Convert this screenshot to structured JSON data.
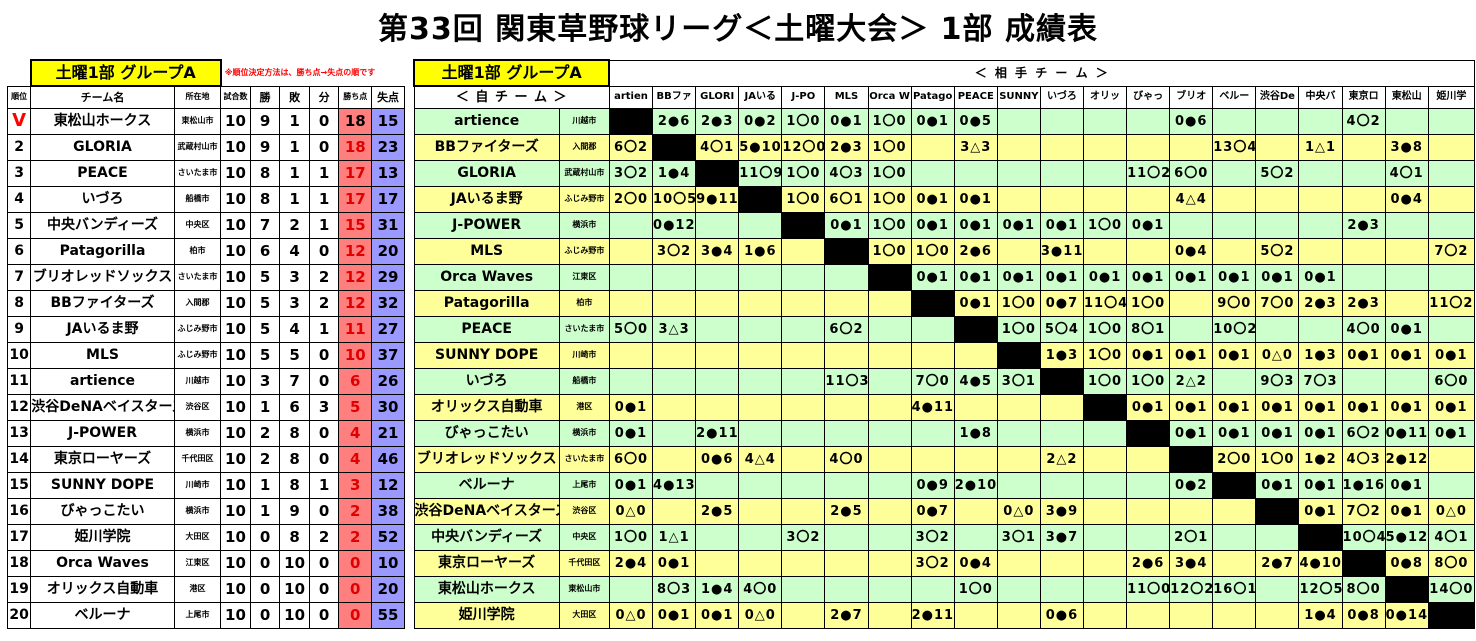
{
  "title": "第33回 関東草野球リーグ＜土曜大会＞ 1部 成績表",
  "group_label": "土曜1部 グループA",
  "note": "※順位決定方法は、勝ち点→失点の順です",
  "left_headers": [
    "順位",
    "チーム名",
    "所在地",
    "試合数",
    "勝",
    "敗",
    "分",
    "勝ち点",
    "失点"
  ],
  "right_header_self": "＜ 自 チ ー ム ＞",
  "right_header_opp": "＜ 相 手 チ ー ム ＞",
  "opp_headers": [
    "artien",
    "BBファ",
    "GLORI",
    "JAいる",
    "J-PO",
    "MLS",
    "Orca W",
    "Patago",
    "PEACE",
    "SUNNY",
    "いづろ",
    "オリッ",
    "びゃっ",
    "ブリオ",
    "ベルー",
    "渋谷De",
    "中央バ",
    "東京ロ",
    "東松山",
    "姫川学"
  ],
  "standings": [
    {
      "rank": "V",
      "name": "東松山ホークス",
      "loc": "東松山市",
      "g": "10",
      "w": "9",
      "l": "1",
      "d": "0",
      "pts": "18",
      "ga": "15"
    },
    {
      "rank": "2",
      "name": "GLORIA",
      "loc": "武蔵村山市",
      "g": "10",
      "w": "9",
      "l": "1",
      "d": "0",
      "pts": "18",
      "ga": "23"
    },
    {
      "rank": "3",
      "name": "PEACE",
      "loc": "さいたま市",
      "g": "10",
      "w": "8",
      "l": "1",
      "d": "1",
      "pts": "17",
      "ga": "13"
    },
    {
      "rank": "4",
      "name": "いづろ",
      "loc": "船橋市",
      "g": "10",
      "w": "8",
      "l": "1",
      "d": "1",
      "pts": "17",
      "ga": "17"
    },
    {
      "rank": "5",
      "name": "中央バンディーズ",
      "loc": "中央区",
      "g": "10",
      "w": "7",
      "l": "2",
      "d": "1",
      "pts": "15",
      "ga": "31"
    },
    {
      "rank": "6",
      "name": "Patagorilla",
      "loc": "柏市",
      "g": "10",
      "w": "6",
      "l": "4",
      "d": "0",
      "pts": "12",
      "ga": "20"
    },
    {
      "rank": "7",
      "name": "ブリオレッドソックス",
      "loc": "さいたま市",
      "g": "10",
      "w": "5",
      "l": "3",
      "d": "2",
      "pts": "12",
      "ga": "29"
    },
    {
      "rank": "8",
      "name": "BBファイターズ",
      "loc": "入間郡",
      "g": "10",
      "w": "5",
      "l": "3",
      "d": "2",
      "pts": "12",
      "ga": "32"
    },
    {
      "rank": "9",
      "name": "JAいるま野",
      "loc": "ふじみ野市",
      "g": "10",
      "w": "5",
      "l": "4",
      "d": "1",
      "pts": "11",
      "ga": "27"
    },
    {
      "rank": "10",
      "name": "MLS",
      "loc": "ふじみ野市",
      "g": "10",
      "w": "5",
      "l": "5",
      "d": "0",
      "pts": "10",
      "ga": "37"
    },
    {
      "rank": "11",
      "name": "artience",
      "loc": "川越市",
      "g": "10",
      "w": "3",
      "l": "7",
      "d": "0",
      "pts": "6",
      "ga": "26"
    },
    {
      "rank": "12",
      "name": "渋谷DeNAベイスターズ",
      "loc": "渋谷区",
      "g": "10",
      "w": "1",
      "l": "6",
      "d": "3",
      "pts": "5",
      "ga": "30"
    },
    {
      "rank": "13",
      "name": "J-POWER",
      "loc": "横浜市",
      "g": "10",
      "w": "2",
      "l": "8",
      "d": "0",
      "pts": "4",
      "ga": "21"
    },
    {
      "rank": "14",
      "name": "東京ローヤーズ",
      "loc": "千代田区",
      "g": "10",
      "w": "2",
      "l": "8",
      "d": "0",
      "pts": "4",
      "ga": "46"
    },
    {
      "rank": "15",
      "name": "SUNNY DOPE",
      "loc": "川崎市",
      "g": "10",
      "w": "1",
      "l": "8",
      "d": "1",
      "pts": "3",
      "ga": "12"
    },
    {
      "rank": "16",
      "name": "びゃっこたい",
      "loc": "横浜市",
      "g": "10",
      "w": "1",
      "l": "9",
      "d": "0",
      "pts": "2",
      "ga": "38"
    },
    {
      "rank": "17",
      "name": "姫川学院",
      "loc": "大田区",
      "g": "10",
      "w": "0",
      "l": "8",
      "d": "2",
      "pts": "2",
      "ga": "52"
    },
    {
      "rank": "18",
      "name": "Orca Waves",
      "loc": "江東区",
      "g": "10",
      "w": "0",
      "l": "10",
      "d": "0",
      "pts": "0",
      "ga": "10"
    },
    {
      "rank": "19",
      "name": "オリックス自動車",
      "loc": "港区",
      "g": "10",
      "w": "0",
      "l": "10",
      "d": "0",
      "pts": "0",
      "ga": "20"
    },
    {
      "rank": "20",
      "name": "ベルーナ",
      "loc": "上尾市",
      "g": "10",
      "w": "0",
      "l": "10",
      "d": "0",
      "pts": "0",
      "ga": "55"
    }
  ],
  "matrix_teams": [
    {
      "name": "artience",
      "loc": "川越市",
      "cells": [
        "■",
        "2●6",
        "2●3",
        "0●2",
        "1〇0",
        "0●1",
        "1〇0",
        "0●1",
        "0●5",
        "",
        "",
        "",
        "",
        "0●6",
        "",
        "",
        "",
        "4〇2",
        "",
        ""
      ]
    },
    {
      "name": "BBファイターズ",
      "loc": "入間郡",
      "cells": [
        "6〇2",
        "■",
        "4〇1",
        "5●10",
        "12〇0",
        "2●3",
        "1〇0",
        "",
        "3△3",
        "",
        "",
        "",
        "",
        "",
        "13〇4",
        "",
        "1△1",
        "",
        "3●8",
        ""
      ]
    },
    {
      "name": "GLORIA",
      "loc": "武蔵村山市",
      "cells": [
        "3〇2",
        "1●4",
        "■",
        "11〇9",
        "1〇0",
        "4〇3",
        "1〇0",
        "",
        "",
        "",
        "",
        "",
        "11〇2",
        "6〇0",
        "",
        "5〇2",
        "",
        "",
        "4〇1",
        ""
      ]
    },
    {
      "name": "JAいるま野",
      "loc": "ふじみ野市",
      "cells": [
        "2〇0",
        "10〇5",
        "9●11",
        "■",
        "1〇0",
        "6〇1",
        "1〇0",
        "0●1",
        "0●1",
        "",
        "",
        "",
        "",
        "4△4",
        "",
        "",
        "",
        "",
        "0●4",
        ""
      ]
    },
    {
      "name": "J-POWER",
      "loc": "横浜市",
      "cells": [
        "",
        "0●12",
        "",
        "",
        "■",
        "0●1",
        "1〇0",
        "0●1",
        "0●1",
        "0●1",
        "0●1",
        "1〇0",
        "0●1",
        "",
        "",
        "",
        "",
        "2●3",
        "",
        ""
      ]
    },
    {
      "name": "MLS",
      "loc": "ふじみ野市",
      "cells": [
        "",
        "3〇2",
        "3●4",
        "1●6",
        "",
        "■",
        "1〇0",
        "1〇0",
        "2●6",
        "",
        "3●11",
        "",
        "",
        "0●4",
        "",
        "5〇2",
        "",
        "",
        "",
        "7〇2"
      ]
    },
    {
      "name": "Orca Waves",
      "loc": "江東区",
      "cells": [
        "",
        "",
        "",
        "",
        "",
        "",
        "■",
        "0●1",
        "0●1",
        "0●1",
        "0●1",
        "0●1",
        "0●1",
        "0●1",
        "0●1",
        "0●1",
        "0●1",
        "",
        "",
        ""
      ]
    },
    {
      "name": "Patagorilla",
      "loc": "柏市",
      "cells": [
        "",
        "",
        "",
        "",
        "",
        "",
        "",
        "■",
        "0●1",
        "1〇0",
        "0●7",
        "11〇4",
        "1〇0",
        "",
        "9〇0",
        "7〇0",
        "2●3",
        "2●3",
        "",
        "11〇2"
      ]
    },
    {
      "name": "PEACE",
      "loc": "さいたま市",
      "cells": [
        "5〇0",
        "3△3",
        "",
        "",
        "",
        "6〇2",
        "",
        "",
        "■",
        "1〇0",
        "5〇4",
        "1〇0",
        "8〇1",
        "",
        "10〇2",
        "",
        "",
        "4〇0",
        "0●1",
        ""
      ]
    },
    {
      "name": "SUNNY DOPE",
      "loc": "川崎市",
      "cells": [
        "",
        "",
        "",
        "",
        "",
        "",
        "",
        "",
        "",
        "■",
        "1●3",
        "1〇0",
        "0●1",
        "0●1",
        "0●1",
        "0△0",
        "1●3",
        "0●1",
        "0●1",
        "0●1"
      ]
    },
    {
      "name": "いづろ",
      "loc": "船橋市",
      "cells": [
        "",
        "",
        "",
        "",
        "",
        "11〇3",
        "",
        "7〇0",
        "4●5",
        "3〇1",
        "■",
        "1〇0",
        "1〇0",
        "2△2",
        "",
        "9〇3",
        "7〇3",
        "",
        "",
        "6〇0"
      ]
    },
    {
      "name": "オリックス自動車",
      "loc": "港区",
      "cells": [
        "0●1",
        "",
        "",
        "",
        "",
        "",
        "",
        "4●11",
        "",
        "",
        "",
        "■",
        "0●1",
        "0●1",
        "0●1",
        "0●1",
        "0●1",
        "0●1",
        "0●1",
        "0●1"
      ]
    },
    {
      "name": "びゃっこたい",
      "loc": "横浜市",
      "cells": [
        "0●1",
        "",
        "2●11",
        "",
        "",
        "",
        "",
        "",
        "1●8",
        "",
        "",
        "",
        "■",
        "0●1",
        "0●1",
        "0●1",
        "0●1",
        "6〇2",
        "0●11",
        "0●1"
      ]
    },
    {
      "name": "ブリオレッドソックス",
      "loc": "さいたま市",
      "cells": [
        "6〇0",
        "",
        "0●6",
        "4△4",
        "",
        "4〇0",
        "",
        "",
        "",
        "",
        "2△2",
        "",
        "",
        "■",
        "2〇0",
        "1〇0",
        "1●2",
        "4〇3",
        "2●12",
        ""
      ]
    },
    {
      "name": "ベルーナ",
      "loc": "上尾市",
      "cells": [
        "0●1",
        "4●13",
        "",
        "",
        "",
        "",
        "",
        "0●9",
        "2●10",
        "",
        "",
        "",
        "",
        "0●2",
        "■",
        "0●1",
        "0●1",
        "1●16",
        "0●1",
        ""
      ]
    },
    {
      "name": "渋谷DeNAベイスターズ",
      "loc": "渋谷区",
      "cells": [
        "0△0",
        "",
        "2●5",
        "",
        "",
        "2●5",
        "",
        "0●7",
        "",
        "0△0",
        "3●9",
        "",
        "",
        "",
        "",
        "■",
        "0●1",
        "7〇2",
        "0●1",
        "0△0"
      ]
    },
    {
      "name": "中央バンディーズ",
      "loc": "中央区",
      "cells": [
        "1〇0",
        "1△1",
        "",
        "",
        "3〇2",
        "",
        "",
        "3〇2",
        "",
        "3〇1",
        "3●7",
        "",
        "",
        "2〇1",
        "",
        "",
        "■",
        "10〇4",
        "5●12",
        "4〇1"
      ]
    },
    {
      "name": "東京ローヤーズ",
      "loc": "千代田区",
      "cells": [
        "2●4",
        "0●1",
        "",
        "",
        "",
        "",
        "",
        "3〇2",
        "0●4",
        "",
        "",
        "",
        "2●6",
        "3●4",
        "",
        "2●7",
        "4●10",
        "■",
        "0●8",
        "8〇0"
      ]
    },
    {
      "name": "東松山ホークス",
      "loc": "東松山市",
      "cells": [
        "",
        "8〇3",
        "1●4",
        "4〇0",
        "",
        "",
        "",
        "",
        "1〇0",
        "",
        "",
        "",
        "11〇0",
        "12〇2",
        "16〇1",
        "",
        "12〇5",
        "8〇0",
        "■",
        "14〇0"
      ]
    },
    {
      "name": "姫川学院",
      "loc": "大田区",
      "cells": [
        "0△0",
        "0●1",
        "0●1",
        "0△0",
        "",
        "2●7",
        "",
        "2●11",
        "",
        "",
        "0●6",
        "",
        "",
        "",
        "",
        "",
        "1●4",
        "0●8",
        "0●14",
        "■"
      ]
    }
  ],
  "colors": {
    "self_green": "#ccffcc",
    "cell_yellow": "#ffff99",
    "group_yellow": "#ffff00",
    "points_red": "#ff7f7f",
    "runs_blue": "#9999ff",
    "champion_red": "#ff0000"
  }
}
